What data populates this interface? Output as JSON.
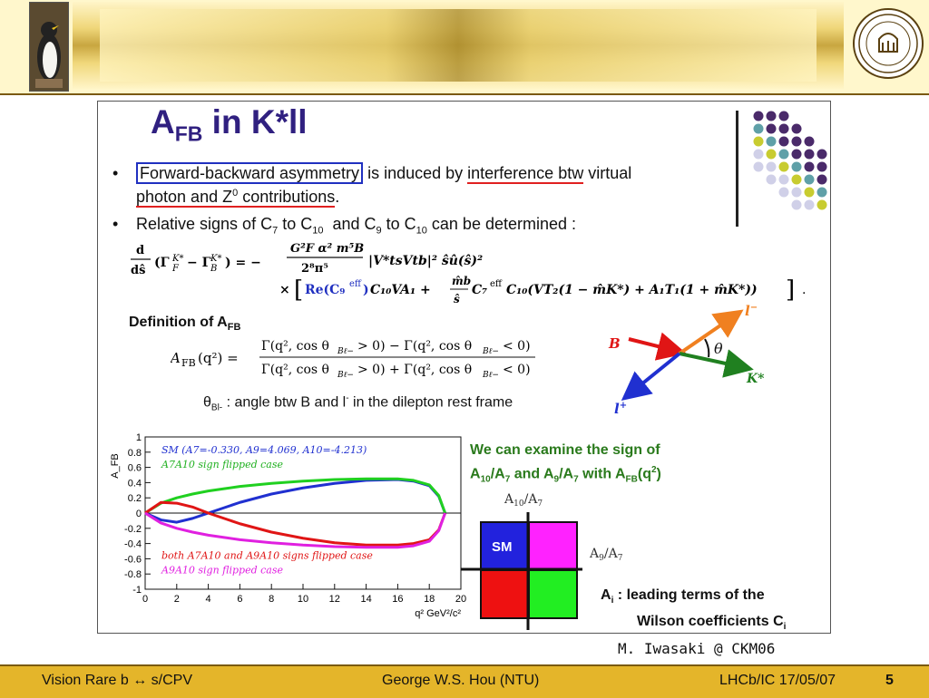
{
  "header": {},
  "slide": {
    "title_main": "A",
    "title_sub": "FB",
    "title_rest": " in K*ll",
    "bullet1": {
      "boxed": "Forward-backward asymmetry",
      "text1": " is induced by ",
      "underlined1": "interference btw",
      "text2": " virtual",
      "underlined2": "photon and Z",
      "sup": "0",
      "underlined3": " contributions",
      "text3": "."
    },
    "bullet2": "Relative signs of C7 to C10  and C9 to C10 can be determined :",
    "definition": "Definition of A",
    "definition_sub": "FB",
    "theta_text": " : angle btw B and l",
    "theta_text2": " in the dilepton rest frame",
    "green_line1": "We can examine the sign of",
    "green_line2": "A10/A7 and A9/A7 with AFB(q2)",
    "ai_line1": "A",
    "ai_sub": "i",
    "ai_line1_rest": " : leading terms of the",
    "ai_line2": "Wilson coefficients C",
    "ai_line2_sub": "i",
    "quad_sm": "SM",
    "quad_y_label": "A10/A7",
    "quad_x_label": "A9/A7",
    "colors": {
      "sm": "#2222dd",
      "magenta": "#ff22ff",
      "red": "#ee1111",
      "green": "#22ee22"
    }
  },
  "diagram": {
    "B": "B",
    "l_minus": "l",
    "l_plus": "l",
    "K_star": "K*",
    "theta": "θ"
  },
  "chart_data": {
    "type": "line",
    "ylabel": "A_FB",
    "xlabel": "q²  GeV²/c²",
    "xlim": [
      0,
      20
    ],
    "ylim": [
      -1,
      1
    ],
    "xticks": [
      0,
      2,
      4,
      6,
      8,
      10,
      12,
      14,
      16,
      18,
      20
    ],
    "yticks": [
      1,
      0.8,
      0.6,
      0.4,
      0.2,
      0,
      -0.2,
      -0.4,
      -0.6,
      -0.8,
      -1
    ],
    "series": [
      {
        "name": "SM (A7=-0.330, A9=4.069, A10=-4.213)",
        "color": "#2030d0",
        "x": [
          0,
          1,
          2,
          3,
          4,
          5,
          6,
          8,
          10,
          12,
          14,
          16,
          17,
          18,
          18.6,
          19
        ],
        "y": [
          0,
          -0.09,
          -0.12,
          -0.07,
          0,
          0.07,
          0.14,
          0.25,
          0.33,
          0.39,
          0.43,
          0.44,
          0.42,
          0.36,
          0.22,
          0
        ]
      },
      {
        "name": "A7A10 sign flipped case",
        "color": "#20d020",
        "x": [
          0,
          1,
          2,
          3,
          4,
          5,
          6,
          8,
          10,
          12,
          14,
          16,
          17,
          18,
          18.6,
          19
        ],
        "y": [
          0,
          0.13,
          0.2,
          0.25,
          0.29,
          0.32,
          0.35,
          0.39,
          0.42,
          0.44,
          0.45,
          0.45,
          0.43,
          0.37,
          0.23,
          0
        ]
      },
      {
        "name": "both A7A10 and A9A10 signs flipped case",
        "color": "#e01515",
        "x": [
          0,
          1,
          2,
          3,
          4,
          5,
          6,
          8,
          10,
          12,
          14,
          16,
          17,
          18,
          18.6,
          19
        ],
        "y": [
          0,
          0.14,
          0.13,
          0.08,
          0,
          -0.07,
          -0.14,
          -0.25,
          -0.33,
          -0.39,
          -0.42,
          -0.42,
          -0.4,
          -0.35,
          -0.22,
          0
        ]
      },
      {
        "name": "A9A10 sign flipped case",
        "color": "#e020e0",
        "x": [
          0,
          1,
          2,
          3,
          4,
          5,
          6,
          8,
          10,
          12,
          14,
          16,
          17,
          18,
          18.6,
          19
        ],
        "y": [
          0,
          -0.13,
          -0.2,
          -0.25,
          -0.29,
          -0.32,
          -0.35,
          -0.39,
          -0.42,
          -0.44,
          -0.45,
          -0.45,
          -0.43,
          -0.37,
          -0.23,
          0
        ]
      }
    ],
    "legend_top": [
      {
        "text": "SM (A7=-0.330, A9=4.069, A10=-4.213)",
        "color": "#2030d0"
      },
      {
        "text": "A7A10 sign flipped case",
        "color": "#20b020"
      }
    ],
    "legend_bottom": [
      {
        "text": "both A7A10 and A9A10 signs flipped case",
        "color": "#e01515"
      },
      {
        "text": "A9A10 sign flipped case",
        "color": "#e020e0"
      }
    ]
  },
  "footer": {
    "author": "M. Iwasaki @ CKM06",
    "left": "Vision Rare b ↔ s/CPV",
    "center": "George W.S. Hou (NTU)",
    "right": "LHCb/IC 17/05/07",
    "page": "5"
  }
}
